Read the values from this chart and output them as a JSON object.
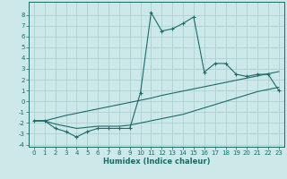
{
  "xlabel": "Humidex (Indice chaleur)",
  "background_color": "#cde8e8",
  "grid_color": "#a8cccc",
  "line_color": "#1a6b6b",
  "xlim": [
    -0.5,
    23.5
  ],
  "ylim": [
    -4.2,
    9.2
  ],
  "xticks": [
    0,
    1,
    2,
    3,
    4,
    5,
    6,
    7,
    8,
    9,
    10,
    11,
    12,
    13,
    14,
    15,
    16,
    17,
    18,
    19,
    20,
    21,
    22,
    23
  ],
  "yticks": [
    -4,
    -3,
    -2,
    -1,
    0,
    1,
    2,
    3,
    4,
    5,
    6,
    7,
    8
  ],
  "line1_x": [
    0,
    1,
    2,
    3,
    4,
    5,
    6,
    7,
    8,
    9,
    10,
    11,
    12,
    13,
    14,
    15,
    16,
    17,
    18,
    19,
    20,
    21,
    22,
    23
  ],
  "line1_y": [
    -1.8,
    -1.8,
    -2.5,
    -2.8,
    -3.3,
    -2.8,
    -2.5,
    -2.5,
    -2.5,
    -2.5,
    0.8,
    8.2,
    6.5,
    6.7,
    7.2,
    7.8,
    2.7,
    3.5,
    3.5,
    2.5,
    2.3,
    2.5,
    2.5,
    1.0
  ],
  "line2_x": [
    0,
    1,
    2,
    3,
    4,
    5,
    6,
    7,
    8,
    9,
    10,
    11,
    12,
    13,
    14,
    15,
    16,
    17,
    18,
    19,
    20,
    21,
    22,
    23
  ],
  "line2_y": [
    -1.8,
    -1.8,
    -1.55,
    -1.3,
    -1.1,
    -0.9,
    -0.7,
    -0.5,
    -0.3,
    -0.1,
    0.1,
    0.3,
    0.55,
    0.75,
    0.95,
    1.15,
    1.35,
    1.55,
    1.75,
    1.95,
    2.15,
    2.35,
    2.55,
    2.75
  ],
  "line3_x": [
    0,
    1,
    2,
    3,
    4,
    5,
    6,
    7,
    8,
    9,
    10,
    11,
    12,
    13,
    14,
    15,
    16,
    17,
    18,
    19,
    20,
    21,
    22,
    23
  ],
  "line3_y": [
    -1.8,
    -1.8,
    -2.1,
    -2.3,
    -2.5,
    -2.4,
    -2.3,
    -2.3,
    -2.3,
    -2.2,
    -2.0,
    -1.8,
    -1.6,
    -1.4,
    -1.2,
    -0.9,
    -0.6,
    -0.3,
    0.0,
    0.3,
    0.6,
    0.9,
    1.1,
    1.3
  ]
}
